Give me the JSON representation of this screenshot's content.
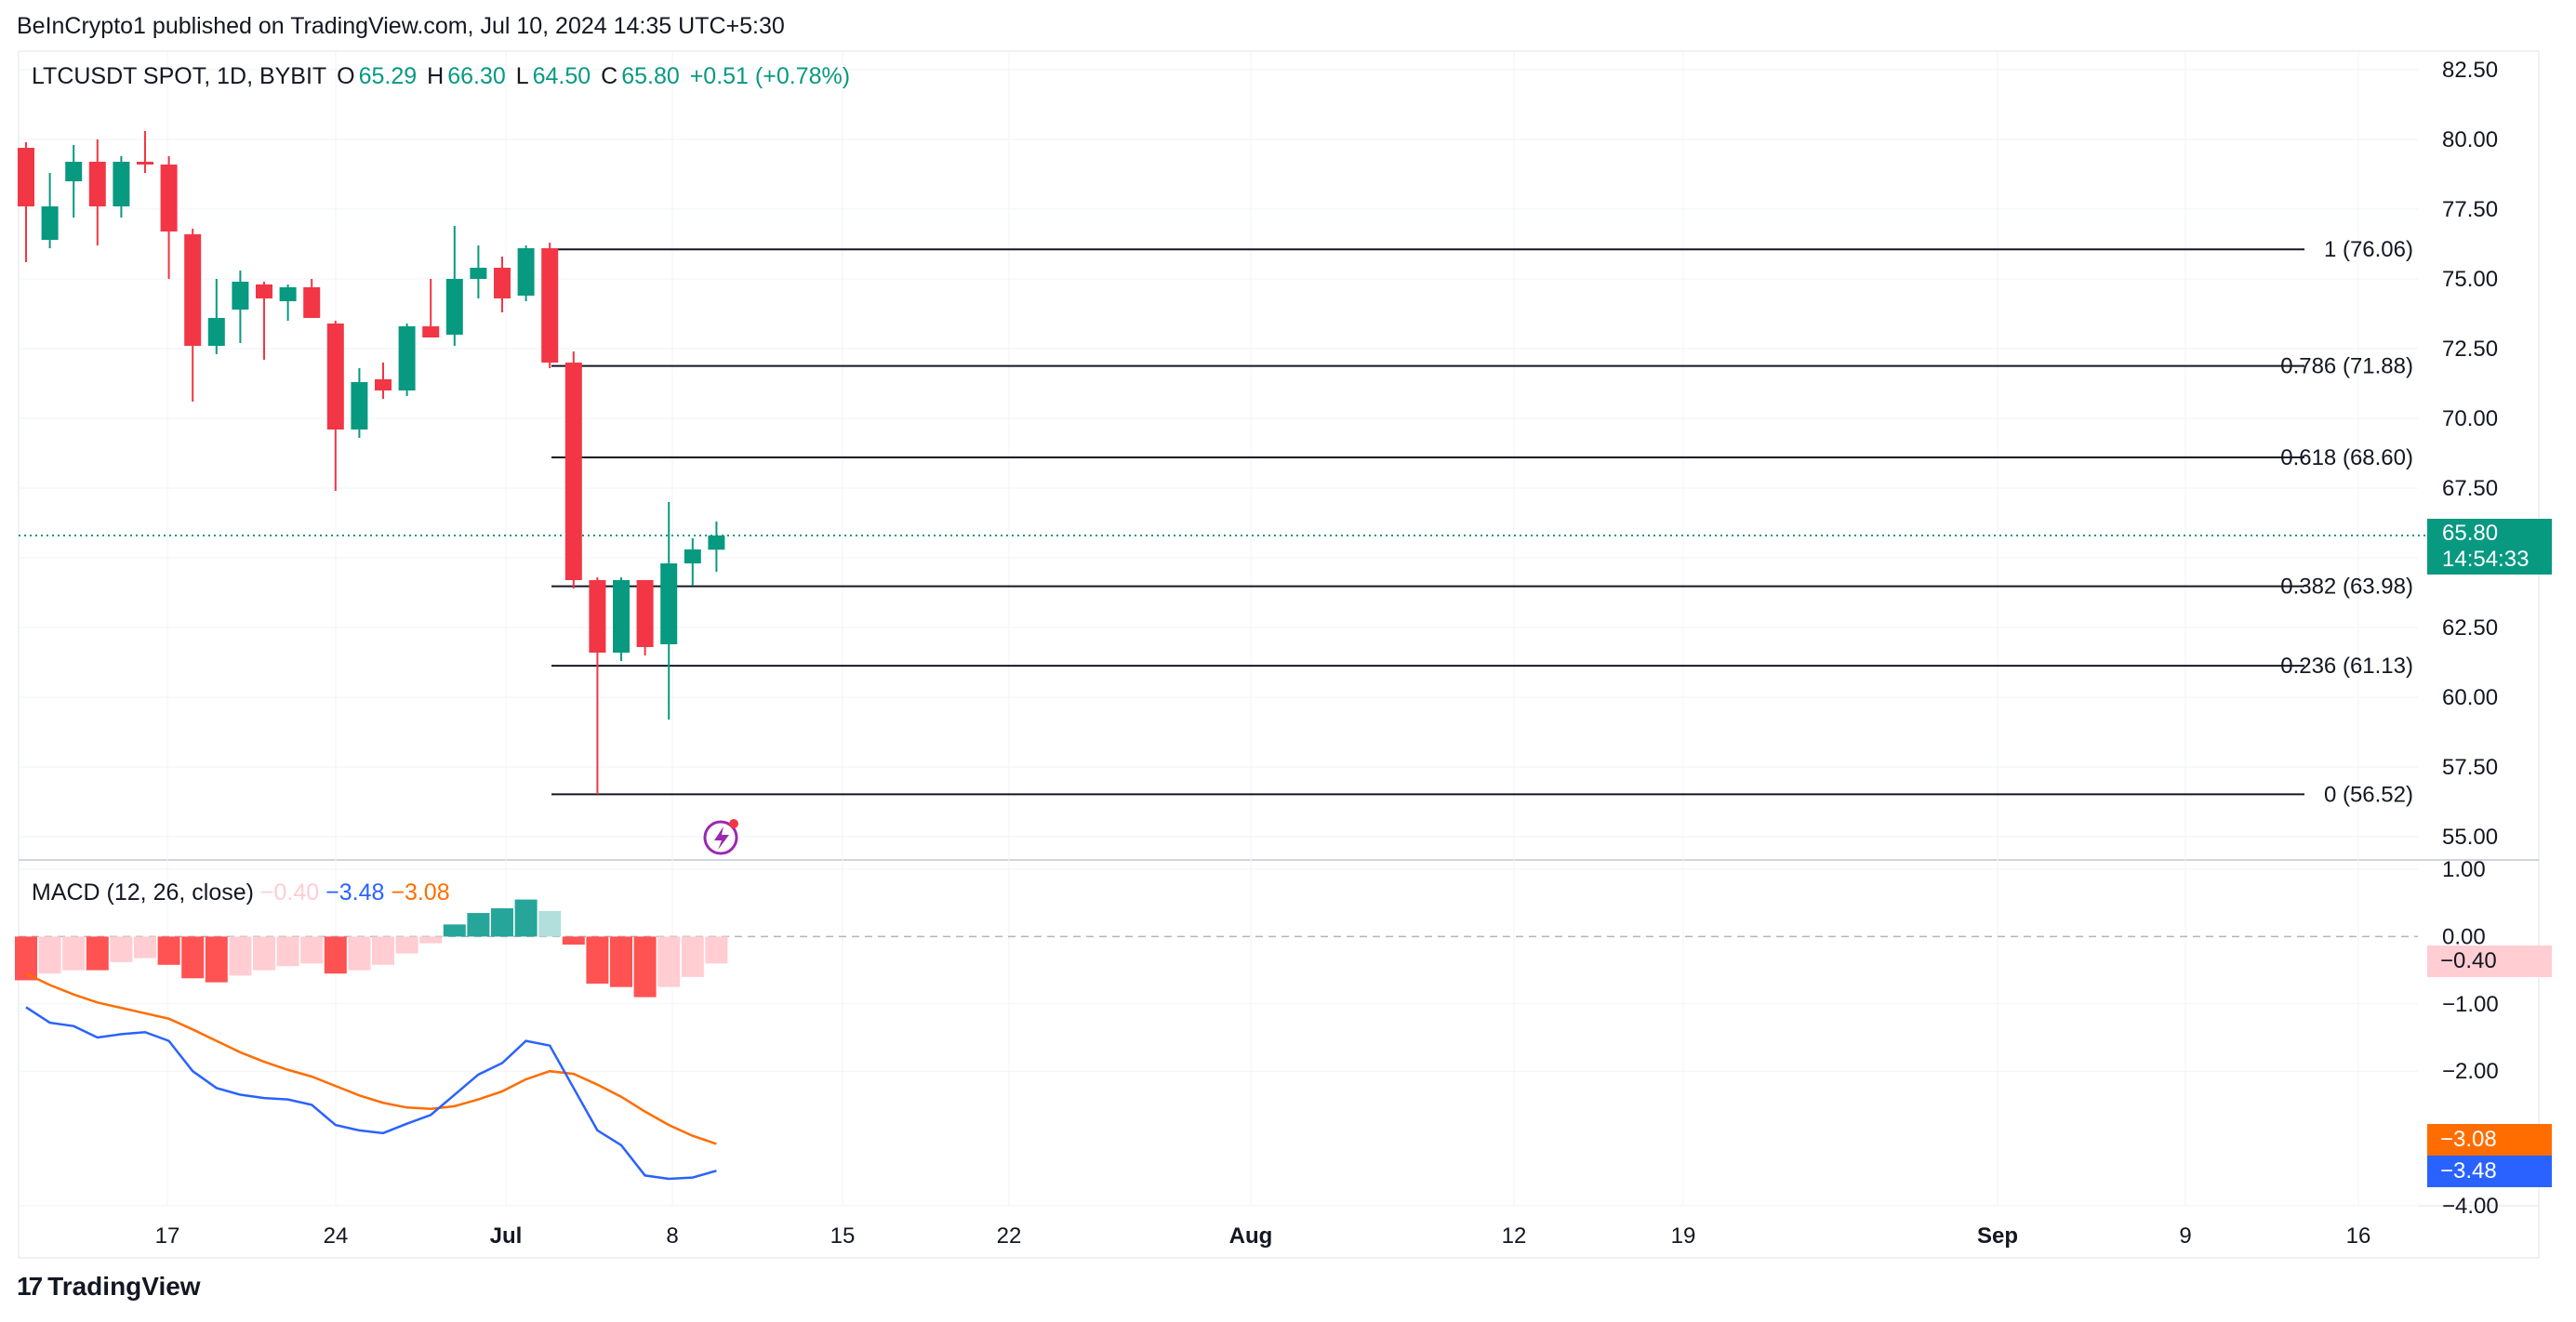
{
  "header": {
    "published": "BeInCrypto1 published on TradingView.com, Jul 10, 2024 14:35 UTC+5:30"
  },
  "legend": {
    "symbol": "LTCUSDT SPOT, 1D, BYBIT",
    "o_label": "O",
    "o": "65.29",
    "h_label": "H",
    "h": "66.30",
    "l_label": "L",
    "l": "64.50",
    "c_label": "C",
    "c": "65.80",
    "change": "+0.51 (+0.78%)"
  },
  "last_price": {
    "price": "65.80",
    "countdown": "14:54:33"
  },
  "macd_legend": {
    "name": "MACD (12, 26, close)",
    "hist": "−0.40",
    "macd": "−3.48",
    "signal": "−3.08"
  },
  "macd_tags": {
    "hist": "−0.40",
    "signal": "−3.08",
    "macd": "−3.48"
  },
  "logo": {
    "text": "TradingView"
  },
  "colors": {
    "up": "#089981",
    "down": "#F23645",
    "hist_up_strong": "#26a69a",
    "hist_up_weak": "#b2dfdb",
    "hist_down_strong": "#ff5252",
    "hist_down_weak": "#ffcdd2",
    "macd_line": "#2962FF",
    "signal_line": "#FF6D00"
  },
  "chart_data": {
    "type": "candlestick",
    "price_axis": {
      "min": 55.0,
      "max": 82.5,
      "ticks": [
        "82.50",
        "80.00",
        "77.50",
        "75.00",
        "72.50",
        "70.00",
        "67.50",
        "65.00",
        "62.50",
        "60.00",
        "57.50",
        "55.00"
      ]
    },
    "x_axis_labels": [
      "17",
      "24",
      "Jul",
      "8",
      "15",
      "22",
      "Aug",
      "12",
      "19",
      "Sep",
      "9",
      "16"
    ],
    "candles": [
      {
        "o": 79.7,
        "h": 79.9,
        "l": 75.6,
        "c": 77.6
      },
      {
        "o": 76.4,
        "h": 78.8,
        "l": 76.1,
        "c": 77.6
      },
      {
        "o": 78.5,
        "h": 79.8,
        "l": 77.2,
        "c": 79.2
      },
      {
        "o": 79.2,
        "h": 80.0,
        "l": 76.2,
        "c": 77.6
      },
      {
        "o": 77.6,
        "h": 79.4,
        "l": 77.2,
        "c": 79.2
      },
      {
        "o": 79.2,
        "h": 80.3,
        "l": 78.8,
        "c": 79.1
      },
      {
        "o": 79.1,
        "h": 79.4,
        "l": 75.0,
        "c": 76.7
      },
      {
        "o": 76.6,
        "h": 76.8,
        "l": 70.6,
        "c": 72.6
      },
      {
        "o": 72.6,
        "h": 75.0,
        "l": 72.3,
        "c": 73.6
      },
      {
        "o": 73.9,
        "h": 75.3,
        "l": 72.7,
        "c": 74.9
      },
      {
        "o": 74.8,
        "h": 74.9,
        "l": 72.1,
        "c": 74.3
      },
      {
        "o": 74.2,
        "h": 74.8,
        "l": 73.5,
        "c": 74.7
      },
      {
        "o": 74.7,
        "h": 75.0,
        "l": 73.8,
        "c": 73.6
      },
      {
        "o": 73.4,
        "h": 73.5,
        "l": 67.4,
        "c": 69.6
      },
      {
        "o": 69.6,
        "h": 71.8,
        "l": 69.3,
        "c": 71.3
      },
      {
        "o": 71.4,
        "h": 72.0,
        "l": 70.7,
        "c": 71.0
      },
      {
        "o": 71.0,
        "h": 73.4,
        "l": 70.8,
        "c": 73.3
      },
      {
        "o": 73.3,
        "h": 75.0,
        "l": 72.9,
        "c": 72.9
      },
      {
        "o": 73.0,
        "h": 76.9,
        "l": 72.6,
        "c": 75.0
      },
      {
        "o": 75.0,
        "h": 76.2,
        "l": 74.3,
        "c": 75.4
      },
      {
        "o": 75.4,
        "h": 75.8,
        "l": 73.8,
        "c": 74.3
      },
      {
        "o": 74.4,
        "h": 76.2,
        "l": 74.2,
        "c": 76.1
      },
      {
        "o": 76.1,
        "h": 76.3,
        "l": 71.8,
        "c": 72.0
      },
      {
        "o": 72.0,
        "h": 72.4,
        "l": 63.9,
        "c": 64.2
      },
      {
        "o": 64.2,
        "h": 64.3,
        "l": 56.52,
        "c": 61.6
      },
      {
        "o": 61.6,
        "h": 64.3,
        "l": 61.3,
        "c": 64.2
      },
      {
        "o": 64.2,
        "h": 64.2,
        "l": 61.5,
        "c": 61.8
      },
      {
        "o": 61.9,
        "h": 67.0,
        "l": 59.2,
        "c": 64.8
      },
      {
        "o": 64.8,
        "h": 65.7,
        "l": 64.0,
        "c": 65.3
      },
      {
        "o": 65.29,
        "h": 66.3,
        "l": 64.5,
        "c": 65.8
      }
    ],
    "fibonacci": [
      {
        "label": "1 (76.06)",
        "value": 76.06
      },
      {
        "label": "0.786 (71.88)",
        "value": 71.88
      },
      {
        "label": "0.618 (68.60)",
        "value": 68.6
      },
      {
        "label": "0.382 (63.98)",
        "value": 63.98
      },
      {
        "label": "0.236 (61.13)",
        "value": 61.13
      },
      {
        "label": "0 (56.52)",
        "value": 56.52
      }
    ],
    "current_price": 65.8,
    "macd": {
      "axis": {
        "min": -4.0,
        "max": 1.0,
        "ticks": [
          "1.00",
          "0.00",
          "−1.00",
          "−2.00",
          "−4.00"
        ]
      },
      "histogram": [
        -0.65,
        -0.55,
        -0.5,
        -0.5,
        -0.38,
        -0.32,
        -0.42,
        -0.62,
        -0.68,
        -0.58,
        -0.5,
        -0.44,
        -0.4,
        -0.55,
        -0.5,
        -0.42,
        -0.25,
        -0.1,
        0.18,
        0.35,
        0.42,
        0.55,
        0.38,
        -0.12,
        -0.7,
        -0.75,
        -0.9,
        -0.75,
        -0.6,
        -0.4
      ],
      "macd_line": [
        -1.05,
        -1.28,
        -1.33,
        -1.5,
        -1.45,
        -1.42,
        -1.55,
        -2.0,
        -2.25,
        -2.35,
        -2.4,
        -2.42,
        -2.5,
        -2.8,
        -2.88,
        -2.92,
        -2.78,
        -2.65,
        -2.35,
        -2.05,
        -1.88,
        -1.55,
        -1.62,
        -2.25,
        -2.88,
        -3.1,
        -3.55,
        -3.6,
        -3.58,
        -3.48
      ],
      "signal_line": [
        -0.55,
        -0.72,
        -0.86,
        -0.98,
        -1.06,
        -1.14,
        -1.22,
        -1.38,
        -1.55,
        -1.72,
        -1.86,
        -1.98,
        -2.08,
        -2.22,
        -2.36,
        -2.47,
        -2.54,
        -2.56,
        -2.52,
        -2.42,
        -2.3,
        -2.12,
        -2.0,
        -2.04,
        -2.2,
        -2.38,
        -2.6,
        -2.8,
        -2.96,
        -3.08
      ]
    }
  }
}
